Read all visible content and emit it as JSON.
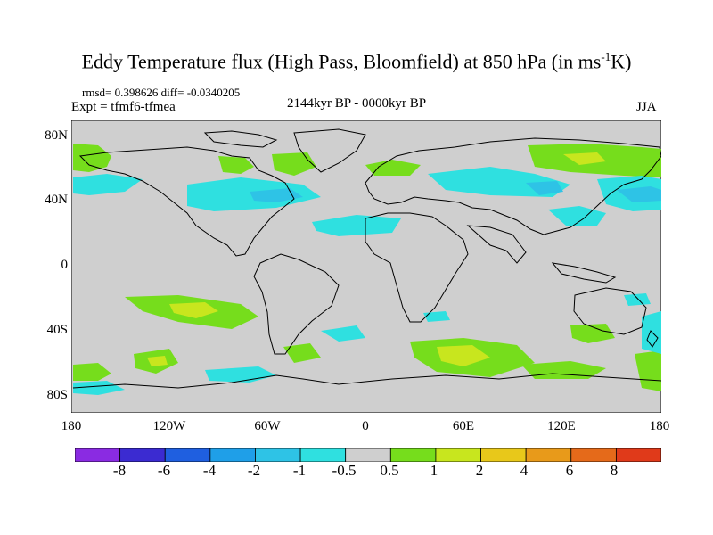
{
  "title": {
    "main": "Eddy Temperature flux (High Pass, Bloomfield) at 850 hPa (in ms",
    "sup": "-1",
    "unit_end": "K)"
  },
  "stats_line": "rmsd= 0.398626 diff= -0.0340205",
  "expt_line": "Expt = tfmf6-tfmea",
  "period_line": "2144kyr BP - 0000kyr BP",
  "season_label": "JJA",
  "latitude_labels": [
    "80N",
    "40N",
    "0",
    "40S",
    "80S"
  ],
  "longitude_labels": [
    "180",
    "120W",
    "60W",
    "0",
    "60E",
    "120E",
    "180"
  ],
  "colorbar": {
    "labels": [
      "-8",
      "-6",
      "-4",
      "-2",
      "-1",
      "-0.5",
      "0.5",
      "1",
      "2",
      "4",
      "6",
      "8"
    ],
    "colors": [
      "#8a2be2",
      "#3b2bd1",
      "#1f5fe0",
      "#1f9fe8",
      "#2ec3e6",
      "#2fe0e0",
      "#cfcfcf",
      "#76dd1c",
      "#c8e61e",
      "#e8c81a",
      "#e89a1a",
      "#e56a1a",
      "#e03a1a"
    ]
  },
  "map_colors": {
    "background": "#cfcfcf",
    "cyan": "#2fe0e0",
    "light_blue": "#2ec3e6",
    "blue": "#1f9fe8",
    "green": "#76dd1c",
    "yellow_green": "#c8e61e",
    "coast": "#000000"
  }
}
